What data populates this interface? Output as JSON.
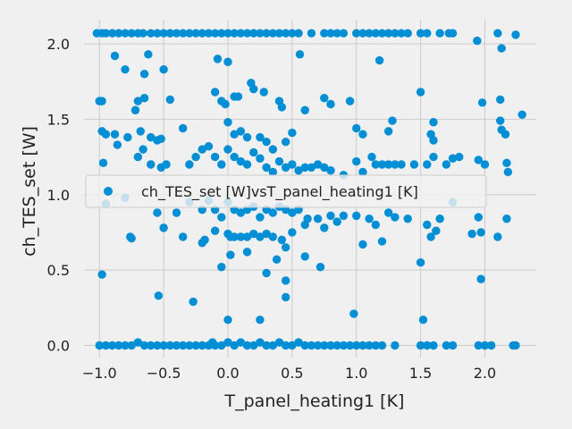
{
  "chart_data": {
    "type": "scatter",
    "xlabel": "T_panel_heating1 [K]",
    "ylabel": "ch_TES_set [W]",
    "xlim": [
      -1.12,
      2.4
    ],
    "ylim": [
      -0.08,
      2.16
    ],
    "xticks": [
      -1.0,
      -0.5,
      0.0,
      0.5,
      1.0,
      1.5,
      2.0
    ],
    "xtick_labels": [
      "−1.0",
      "−0.5",
      "0.0",
      "0.5",
      "1.0",
      "1.5",
      "2.0"
    ],
    "yticks": [
      0.0,
      0.5,
      1.0,
      1.5,
      2.0
    ],
    "ytick_labels": [
      "0.0",
      "0.5",
      "1.0",
      "1.5",
      "2.0"
    ],
    "grid": true,
    "legend_position": "center-left",
    "series": [
      {
        "name": "ch_TES_set [W]vsT_panel_heating1 [K]",
        "color": "#008fd5",
        "points": [
          [
            -1.02,
            2.07
          ],
          [
            -0.98,
            2.07
          ],
          [
            -0.95,
            2.07
          ],
          [
            -0.9,
            2.07
          ],
          [
            -0.85,
            2.07
          ],
          [
            -0.8,
            2.07
          ],
          [
            -0.75,
            2.07
          ],
          [
            -0.7,
            2.07
          ],
          [
            -0.66,
            2.07
          ],
          [
            -0.6,
            2.07
          ],
          [
            -0.55,
            2.07
          ],
          [
            -0.5,
            2.07
          ],
          [
            -0.45,
            2.07
          ],
          [
            -0.4,
            2.07
          ],
          [
            -0.35,
            2.07
          ],
          [
            -0.3,
            2.07
          ],
          [
            -0.25,
            2.07
          ],
          [
            -0.2,
            2.07
          ],
          [
            -0.15,
            2.07
          ],
          [
            -0.1,
            2.07
          ],
          [
            -0.05,
            2.07
          ],
          [
            0.0,
            2.07
          ],
          [
            0.05,
            2.07
          ],
          [
            0.1,
            2.07
          ],
          [
            0.15,
            2.07
          ],
          [
            0.2,
            2.07
          ],
          [
            0.25,
            2.07
          ],
          [
            0.3,
            2.07
          ],
          [
            0.35,
            2.07
          ],
          [
            0.4,
            2.07
          ],
          [
            0.45,
            2.07
          ],
          [
            0.5,
            2.07
          ],
          [
            0.55,
            2.07
          ],
          [
            0.65,
            2.07
          ],
          [
            0.75,
            2.07
          ],
          [
            0.8,
            2.07
          ],
          [
            0.85,
            2.07
          ],
          [
            0.9,
            2.07
          ],
          [
            1.0,
            2.07
          ],
          [
            1.05,
            2.07
          ],
          [
            1.1,
            2.07
          ],
          [
            1.15,
            2.07
          ],
          [
            1.2,
            2.07
          ],
          [
            1.25,
            2.07
          ],
          [
            1.3,
            2.07
          ],
          [
            1.35,
            2.07
          ],
          [
            1.4,
            2.07
          ],
          [
            1.5,
            2.07
          ],
          [
            1.55,
            2.07
          ],
          [
            1.65,
            2.07
          ],
          [
            1.72,
            2.07
          ],
          [
            1.75,
            2.07
          ],
          [
            2.1,
            2.07
          ],
          [
            2.24,
            2.06
          ],
          [
            -0.88,
            1.92
          ],
          [
            -0.8,
            1.83
          ],
          [
            -0.62,
            1.93
          ],
          [
            -0.5,
            1.83
          ],
          [
            -0.65,
            1.8
          ],
          [
            0.0,
            1.88
          ],
          [
            -0.08,
            1.9
          ],
          [
            0.56,
            1.93
          ],
          [
            1.18,
            1.89
          ],
          [
            1.94,
            2.02
          ],
          [
            2.13,
            1.97
          ],
          [
            -1.0,
            1.62
          ],
          [
            -0.98,
            1.62
          ],
          [
            -0.7,
            1.62
          ],
          [
            -0.72,
            1.56
          ],
          [
            -0.65,
            1.64
          ],
          [
            -0.45,
            1.63
          ],
          [
            -0.1,
            1.68
          ],
          [
            -0.05,
            1.62
          ],
          [
            0.05,
            1.65
          ],
          [
            0.08,
            1.65
          ],
          [
            -0.02,
            1.6
          ],
          [
            0.18,
            1.74
          ],
          [
            0.2,
            1.7
          ],
          [
            0.28,
            1.68
          ],
          [
            0.4,
            1.62
          ],
          [
            0.42,
            1.58
          ],
          [
            0.6,
            1.56
          ],
          [
            0.75,
            1.64
          ],
          [
            0.8,
            1.6
          ],
          [
            0.95,
            1.62
          ],
          [
            1.5,
            1.68
          ],
          [
            1.98,
            1.61
          ],
          [
            2.12,
            1.63
          ],
          [
            -0.98,
            1.42
          ],
          [
            -0.95,
            1.4
          ],
          [
            -0.88,
            1.4
          ],
          [
            -0.78,
            1.38
          ],
          [
            -0.68,
            1.42
          ],
          [
            -0.6,
            1.38
          ],
          [
            -0.52,
            1.37
          ],
          [
            -0.55,
            1.36
          ],
          [
            -0.35,
            1.44
          ],
          [
            0.0,
            1.48
          ],
          [
            0.05,
            1.4
          ],
          [
            0.1,
            1.42
          ],
          [
            0.15,
            1.38
          ],
          [
            0.25,
            1.38
          ],
          [
            0.3,
            1.35
          ],
          [
            0.35,
            1.3
          ],
          [
            0.45,
            1.35
          ],
          [
            0.5,
            1.41
          ],
          [
            1.0,
            1.44
          ],
          [
            1.05,
            1.4
          ],
          [
            1.25,
            1.42
          ],
          [
            1.28,
            1.49
          ],
          [
            1.6,
            1.48
          ],
          [
            1.58,
            1.4
          ],
          [
            1.6,
            1.36
          ],
          [
            2.12,
            1.49
          ],
          [
            2.13,
            1.43
          ],
          [
            2.16,
            1.4
          ],
          [
            2.29,
            1.53
          ],
          [
            -0.97,
            1.21
          ],
          [
            -0.86,
            1.33
          ],
          [
            -0.7,
            1.25
          ],
          [
            -0.66,
            1.3
          ],
          [
            -0.6,
            1.2
          ],
          [
            -0.52,
            1.18
          ],
          [
            -0.48,
            1.2
          ],
          [
            -0.3,
            1.2
          ],
          [
            -0.25,
            1.25
          ],
          [
            -0.2,
            1.3
          ],
          [
            -0.15,
            1.32
          ],
          [
            -0.1,
            1.25
          ],
          [
            -0.05,
            1.2
          ],
          [
            0.0,
            1.3
          ],
          [
            0.05,
            1.25
          ],
          [
            0.1,
            1.22
          ],
          [
            0.15,
            1.2
          ],
          [
            0.2,
            1.28
          ],
          [
            0.25,
            1.24
          ],
          [
            0.3,
            1.18
          ],
          [
            0.35,
            1.15
          ],
          [
            0.4,
            1.22
          ],
          [
            0.45,
            1.18
          ],
          [
            0.5,
            1.2
          ],
          [
            0.55,
            1.16
          ],
          [
            0.6,
            1.18
          ],
          [
            0.65,
            1.18
          ],
          [
            0.7,
            1.2
          ],
          [
            0.75,
            1.18
          ],
          [
            0.8,
            1.16
          ],
          [
            0.9,
            1.13
          ],
          [
            1.0,
            1.22
          ],
          [
            1.05,
            1.15
          ],
          [
            1.12,
            1.25
          ],
          [
            1.15,
            1.2
          ],
          [
            1.2,
            1.2
          ],
          [
            1.25,
            1.2
          ],
          [
            1.3,
            1.2
          ],
          [
            1.35,
            1.2
          ],
          [
            1.45,
            1.2
          ],
          [
            1.55,
            1.2
          ],
          [
            1.6,
            1.25
          ],
          [
            1.7,
            1.2
          ],
          [
            1.75,
            1.24
          ],
          [
            1.8,
            1.25
          ],
          [
            1.95,
            1.23
          ],
          [
            2.0,
            1.2
          ],
          [
            2.17,
            1.21
          ],
          [
            2.18,
            1.15
          ],
          [
            -0.95,
            0.94
          ],
          [
            -0.8,
            0.98
          ],
          [
            -0.55,
            0.88
          ],
          [
            -0.4,
            0.88
          ],
          [
            -0.3,
            0.95
          ],
          [
            -0.2,
            0.9
          ],
          [
            -0.15,
            0.96
          ],
          [
            -0.1,
            0.9
          ],
          [
            -0.05,
            0.85
          ],
          [
            0.0,
            0.95
          ],
          [
            0.05,
            0.9
          ],
          [
            0.1,
            0.88
          ],
          [
            0.15,
            0.9
          ],
          [
            0.2,
            0.92
          ],
          [
            0.25,
            0.85
          ],
          [
            0.3,
            0.9
          ],
          [
            0.35,
            0.88
          ],
          [
            0.4,
            0.92
          ],
          [
            0.45,
            0.9
          ],
          [
            0.5,
            0.88
          ],
          [
            0.55,
            0.9
          ],
          [
            0.62,
            0.84
          ],
          [
            0.7,
            0.84
          ],
          [
            0.8,
            0.86
          ],
          [
            0.85,
            0.82
          ],
          [
            0.9,
            0.86
          ],
          [
            1.0,
            0.86
          ],
          [
            1.1,
            0.84
          ],
          [
            1.15,
            0.8
          ],
          [
            1.25,
            0.88
          ],
          [
            1.3,
            0.85
          ],
          [
            1.4,
            0.84
          ],
          [
            1.55,
            0.8
          ],
          [
            1.65,
            0.84
          ],
          [
            1.75,
            0.95
          ],
          [
            1.9,
            0.74
          ],
          [
            1.95,
            0.85
          ],
          [
            1.97,
            0.75
          ],
          [
            2.1,
            0.72
          ],
          [
            2.17,
            0.84
          ],
          [
            -0.76,
            0.72
          ],
          [
            -0.75,
            0.71
          ],
          [
            -0.5,
            0.78
          ],
          [
            -0.35,
            0.72
          ],
          [
            -0.2,
            0.68
          ],
          [
            -0.18,
            0.7
          ],
          [
            -0.1,
            0.76
          ],
          [
            0.0,
            0.74
          ],
          [
            0.02,
            0.72
          ],
          [
            0.05,
            0.72
          ],
          [
            0.1,
            0.72
          ],
          [
            0.15,
            0.72
          ],
          [
            0.2,
            0.74
          ],
          [
            0.25,
            0.72
          ],
          [
            0.3,
            0.74
          ],
          [
            0.35,
            0.72
          ],
          [
            0.42,
            0.7
          ],
          [
            0.45,
            0.65
          ],
          [
            0.5,
            0.75
          ],
          [
            0.6,
            0.8
          ],
          [
            0.75,
            0.78
          ],
          [
            1.05,
            0.67
          ],
          [
            1.2,
            0.69
          ],
          [
            1.58,
            0.72
          ],
          [
            1.62,
            0.76
          ],
          [
            -0.98,
            0.47
          ],
          [
            0.02,
            0.6
          ],
          [
            0.15,
            0.62
          ],
          [
            -0.05,
            0.52
          ],
          [
            0.38,
            0.57
          ],
          [
            0.3,
            0.48
          ],
          [
            0.45,
            0.43
          ],
          [
            0.45,
            0.32
          ],
          [
            0.6,
            0.59
          ],
          [
            0.72,
            0.52
          ],
          [
            1.5,
            0.55
          ],
          [
            1.97,
            0.44
          ],
          [
            -0.54,
            0.33
          ],
          [
            -0.27,
            0.29
          ],
          [
            0.0,
            0.17
          ],
          [
            0.25,
            0.17
          ],
          [
            0.98,
            0.21
          ],
          [
            1.52,
            0.17
          ],
          [
            -1.0,
            0.0
          ],
          [
            -0.95,
            0.0
          ],
          [
            -0.9,
            0.0
          ],
          [
            -0.85,
            0.0
          ],
          [
            -0.8,
            0.0
          ],
          [
            -0.75,
            0.0
          ],
          [
            -0.7,
            0.02
          ],
          [
            -0.65,
            0.0
          ],
          [
            -0.6,
            0.0
          ],
          [
            -0.55,
            0.0
          ],
          [
            -0.5,
            0.0
          ],
          [
            -0.45,
            0.0
          ],
          [
            -0.4,
            0.0
          ],
          [
            -0.35,
            0.0
          ],
          [
            -0.3,
            0.0
          ],
          [
            -0.25,
            0.0
          ],
          [
            -0.2,
            0.0
          ],
          [
            -0.15,
            0.0
          ],
          [
            -0.12,
            0.02
          ],
          [
            -0.1,
            0.0
          ],
          [
            -0.05,
            0.0
          ],
          [
            0.0,
            0.02
          ],
          [
            0.05,
            0.0
          ],
          [
            0.1,
            0.02
          ],
          [
            0.15,
            0.0
          ],
          [
            0.2,
            0.0
          ],
          [
            0.25,
            0.02
          ],
          [
            0.3,
            0.0
          ],
          [
            0.35,
            0.0
          ],
          [
            0.4,
            0.02
          ],
          [
            0.45,
            0.0
          ],
          [
            0.5,
            0.0
          ],
          [
            0.55,
            0.02
          ],
          [
            0.6,
            0.0
          ],
          [
            0.65,
            0.0
          ],
          [
            0.7,
            0.0
          ],
          [
            0.75,
            0.0
          ],
          [
            0.8,
            0.0
          ],
          [
            0.85,
            0.0
          ],
          [
            0.9,
            0.0
          ],
          [
            0.95,
            0.0
          ],
          [
            1.0,
            0.0
          ],
          [
            1.05,
            0.0
          ],
          [
            1.1,
            0.0
          ],
          [
            1.15,
            0.0
          ],
          [
            1.2,
            0.0
          ],
          [
            1.3,
            0.0
          ],
          [
            1.5,
            0.0
          ],
          [
            1.55,
            0.0
          ],
          [
            1.6,
            0.0
          ],
          [
            1.7,
            0.0
          ],
          [
            1.75,
            0.0
          ],
          [
            1.95,
            0.0
          ],
          [
            2.0,
            0.0
          ],
          [
            2.05,
            0.0
          ],
          [
            2.22,
            0.0
          ],
          [
            2.24,
            0.0
          ]
        ]
      }
    ]
  }
}
